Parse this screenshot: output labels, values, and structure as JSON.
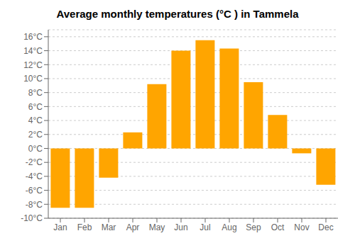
{
  "chart_data": {
    "type": "bar",
    "title": "Average monthly temperatures (°C ) in Tammela",
    "categories": [
      "Jan",
      "Feb",
      "Mar",
      "Apr",
      "May",
      "Jun",
      "Jul",
      "Aug",
      "Sep",
      "Oct",
      "Nov",
      "Dec"
    ],
    "values": [
      -8.5,
      -8.5,
      -4.2,
      2.3,
      9.2,
      14.0,
      15.5,
      14.3,
      9.5,
      4.8,
      -0.7,
      -5.2
    ],
    "color": "#FFA500",
    "ylim": [
      -10,
      17
    ],
    "yticks": [
      {
        "value": -10,
        "label": "-10°C"
      },
      {
        "value": -8,
        "label": "-8°C"
      },
      {
        "value": -6,
        "label": "-6°C"
      },
      {
        "value": -4,
        "label": "-4°C"
      },
      {
        "value": -2,
        "label": "-2°C"
      },
      {
        "value": 0,
        "label": "0°C"
      },
      {
        "value": 2,
        "label": "2°C"
      },
      {
        "value": 4,
        "label": "4°C"
      },
      {
        "value": 6,
        "label": "6°C"
      },
      {
        "value": 8,
        "label": "8°C"
      },
      {
        "value": 10,
        "label": "10°C"
      },
      {
        "value": 12,
        "label": "12°C"
      },
      {
        "value": 14,
        "label": "14°C"
      },
      {
        "value": 16,
        "label": "16°C"
      }
    ],
    "grid": true
  }
}
